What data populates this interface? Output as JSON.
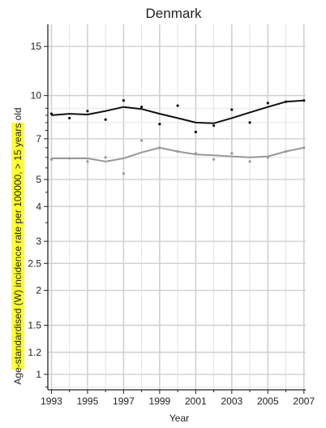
{
  "chart_data": {
    "type": "line",
    "title": "Denmark",
    "xlabel": "Year",
    "ylabel": "Age-standardised (W) incidence rate per 100000, > 15 years old",
    "y_scale": "log",
    "xlim": [
      1992.8,
      2007.1
    ],
    "ylim": [
      0.88,
      18
    ],
    "x_ticks": [
      1993,
      1995,
      1997,
      1999,
      2001,
      2003,
      2005,
      2007
    ],
    "y_ticks": [
      1,
      1.2,
      1.5,
      2,
      2.5,
      3,
      4,
      5,
      7,
      10,
      15
    ],
    "y_tick_labels": [
      "1",
      "1.2",
      "1.5",
      "2",
      "2.5",
      "3",
      "4",
      "5",
      "7",
      "10",
      "15"
    ],
    "grid": true,
    "series": [
      {
        "color": "#111111",
        "points": [
          [
            1993,
            8.6
          ],
          [
            1994,
            8.3
          ],
          [
            1995,
            8.8
          ],
          [
            1996,
            8.2
          ],
          [
            1997,
            9.6
          ],
          [
            1998,
            9.1
          ],
          [
            1999,
            7.9
          ],
          [
            2000,
            9.2
          ],
          [
            2001,
            7.4
          ],
          [
            2002,
            7.8
          ],
          [
            2003,
            8.9
          ],
          [
            2004,
            8.0
          ],
          [
            2005,
            9.4
          ],
          [
            2006,
            9.5
          ],
          [
            2007,
            9.6
          ]
        ],
        "trend": [
          [
            1993,
            8.5
          ],
          [
            1994,
            8.6
          ],
          [
            1995,
            8.55
          ],
          [
            1996,
            8.8
          ],
          [
            1997,
            9.1
          ],
          [
            1998,
            8.95
          ],
          [
            1999,
            8.6
          ],
          [
            2000,
            8.3
          ],
          [
            2001,
            8.0
          ],
          [
            2002,
            7.95
          ],
          [
            2003,
            8.3
          ],
          [
            2004,
            8.7
          ],
          [
            2005,
            9.1
          ],
          [
            2006,
            9.5
          ],
          [
            2007,
            9.6
          ]
        ]
      },
      {
        "color": "#999999",
        "points": [
          [
            1993,
            5.9
          ],
          [
            1994,
            5.95
          ],
          [
            1995,
            5.8
          ],
          [
            1996,
            6.0
          ],
          [
            1997,
            5.25
          ],
          [
            1998,
            6.9
          ],
          [
            1999,
            6.5
          ],
          [
            2000,
            6.3
          ],
          [
            2001,
            6.2
          ],
          [
            2002,
            5.9
          ],
          [
            2003,
            6.2
          ],
          [
            2004,
            5.8
          ],
          [
            2005,
            6.0
          ],
          [
            2006,
            6.3
          ],
          [
            2007,
            6.5
          ]
        ],
        "trend": [
          [
            1993,
            5.95
          ],
          [
            1994,
            5.95
          ],
          [
            1995,
            5.95
          ],
          [
            1996,
            5.8
          ],
          [
            1997,
            5.95
          ],
          [
            1998,
            6.25
          ],
          [
            1999,
            6.5
          ],
          [
            2000,
            6.3
          ],
          [
            2001,
            6.15
          ],
          [
            2002,
            6.1
          ],
          [
            2003,
            6.05
          ],
          [
            2004,
            6.0
          ],
          [
            2005,
            6.05
          ],
          [
            2006,
            6.3
          ],
          [
            2007,
            6.5
          ]
        ]
      }
    ],
    "ylabel_highlight_color": "#ffff33"
  }
}
